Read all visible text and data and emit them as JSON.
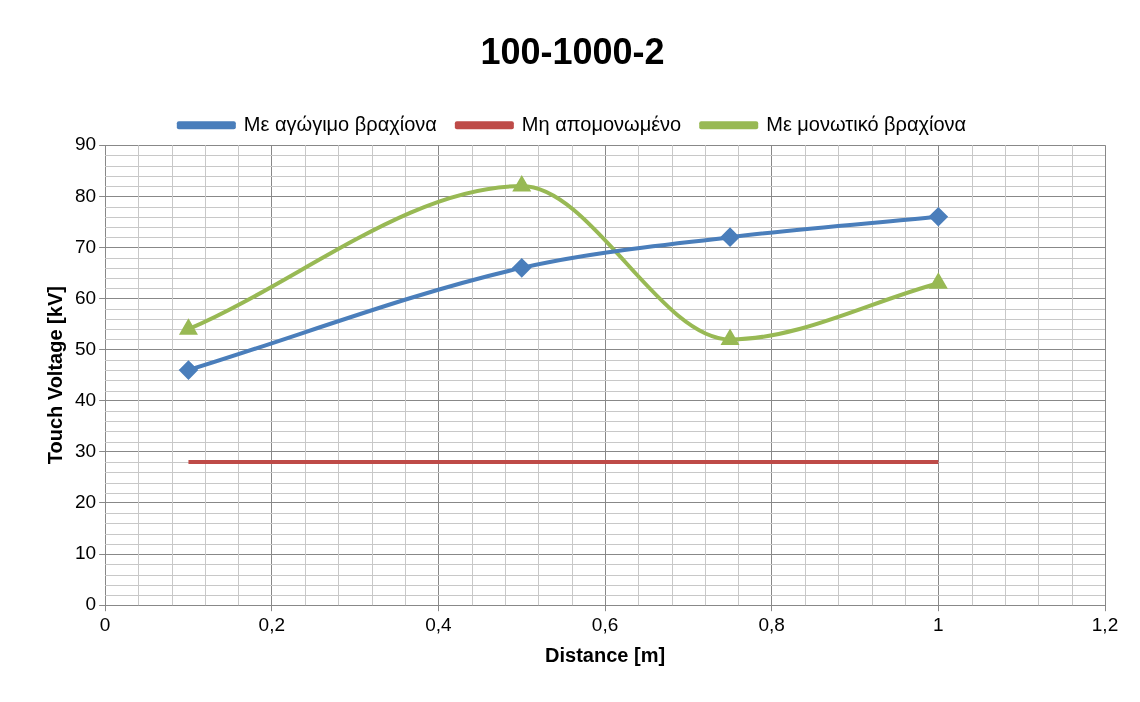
{
  "chart_data": {
    "type": "line",
    "title": "100-1000-2",
    "xlabel": "Distance [m]",
    "ylabel": "Touch Voltage [kV]",
    "x": [
      0.1,
      0.5,
      0.75,
      1
    ],
    "series": [
      {
        "name": "Με αγώγιμο βραχίονα",
        "color": "#4a7ebb",
        "marker": "diamond",
        "values": [
          46,
          66,
          72,
          76
        ]
      },
      {
        "name": "Μη απομονωμένο",
        "color": "#be4b48",
        "marker": "none",
        "values": [
          28,
          28,
          28,
          28
        ]
      },
      {
        "name": "Με μονωτικό βραχίονα",
        "color": "#98b954",
        "marker": "triangle",
        "values": [
          54,
          82,
          52,
          63
        ]
      }
    ],
    "xlim": [
      0,
      1.2
    ],
    "xticks": [
      0,
      {
        "value": 0.2,
        "label": "0,2"
      },
      {
        "value": 0.4,
        "label": "0,4"
      },
      {
        "value": 0.6,
        "label": "0,6"
      },
      {
        "value": 0.8,
        "label": "0,8"
      },
      1,
      {
        "value": 1.2,
        "label": "1,2"
      }
    ],
    "ylim": [
      0,
      90
    ],
    "yticks": [
      0,
      10,
      20,
      30,
      40,
      50,
      60,
      70,
      80,
      90
    ],
    "grid": true,
    "legend": "top",
    "line_style": "solid"
  }
}
